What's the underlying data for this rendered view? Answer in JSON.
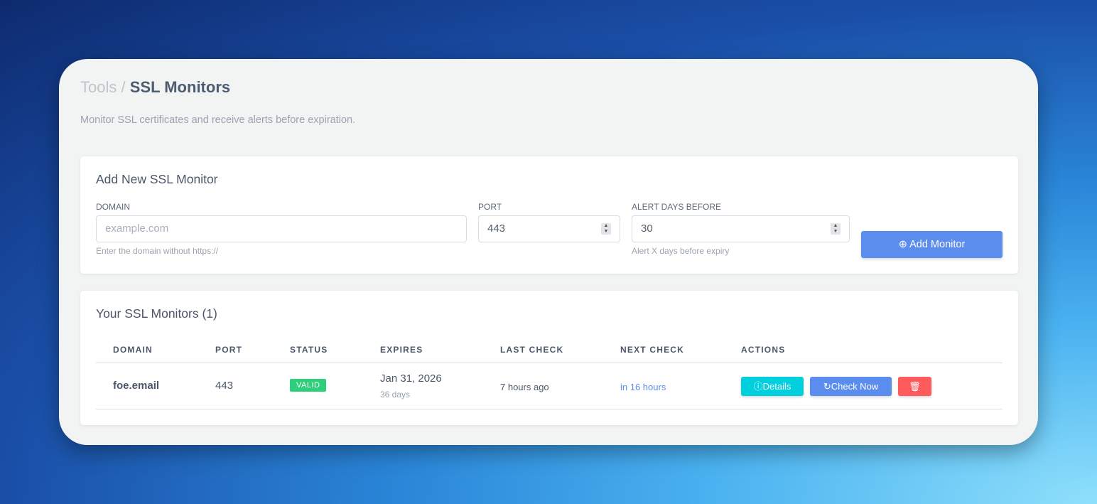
{
  "breadcrumb": {
    "parent": "Tools",
    "separator": "/",
    "current": "SSL Monitors"
  },
  "subtitle": "Monitor SSL certificates and receive alerts before expiration.",
  "add_form": {
    "title": "Add New SSL Monitor",
    "domain": {
      "label": "DOMAIN",
      "placeholder": "example.com",
      "help": "Enter the domain without https://"
    },
    "port": {
      "label": "PORT",
      "value": "443"
    },
    "alert": {
      "label": "ALERT DAYS BEFORE",
      "value": "30",
      "help": "Alert X days before expiry"
    },
    "submit": "Add Monitor"
  },
  "monitors": {
    "title": "Your SSL Monitors (1)",
    "columns": [
      "DOMAIN",
      "PORT",
      "STATUS",
      "EXPIRES",
      "LAST CHECK",
      "NEXT CHECK",
      "ACTIONS"
    ],
    "rows": [
      {
        "domain": "foe.email",
        "port": "443",
        "status": "VALID",
        "expires": "Jan 31, 2026",
        "expires_in": "36 days",
        "last_check": "7 hours ago",
        "next_check": "in 16 hours",
        "details": "Details",
        "check_now": "Check Now"
      }
    ]
  },
  "colors": {
    "accent": "#5b8def",
    "valid": "#2ecf7a",
    "details": "#00cfdd",
    "delete": "#ff5b5c"
  }
}
